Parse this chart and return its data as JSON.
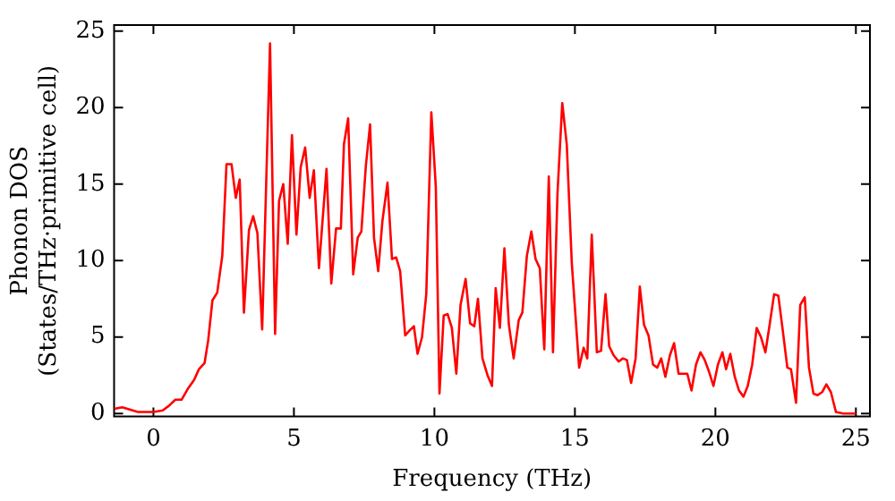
{
  "chart_data": {
    "type": "line",
    "xlabel": "Frequency (THz)",
    "ylabel": "Phonon DOS\n(States/THz·primitive cell)",
    "x": [
      -1.4,
      -1.11,
      -0.55,
      0.0,
      0.33,
      0.55,
      0.78,
      1.0,
      1.22,
      1.45,
      1.62,
      1.82,
      1.95,
      2.1,
      2.27,
      2.45,
      2.6,
      2.78,
      2.93,
      3.07,
      3.22,
      3.4,
      3.55,
      3.7,
      3.87,
      4.15,
      4.33,
      4.47,
      4.62,
      4.78,
      4.93,
      5.09,
      5.24,
      5.4,
      5.56,
      5.71,
      5.89,
      6.16,
      6.33,
      6.5,
      6.67,
      6.78,
      6.93,
      7.11,
      7.27,
      7.4,
      7.56,
      7.71,
      7.85,
      8.0,
      8.15,
      8.33,
      8.49,
      8.64,
      8.78,
      8.96,
      9.1,
      9.27,
      9.4,
      9.56,
      9.71,
      9.89,
      10.05,
      10.18,
      10.33,
      10.47,
      10.62,
      10.78,
      10.93,
      11.11,
      11.27,
      11.42,
      11.55,
      11.71,
      11.89,
      12.05,
      12.18,
      12.33,
      12.49,
      12.65,
      12.82,
      13.0,
      13.13,
      13.29,
      13.45,
      13.6,
      13.75,
      13.91,
      14.07,
      14.22,
      14.38,
      14.55,
      14.71,
      14.89,
      15.15,
      15.31,
      15.44,
      15.6,
      15.78,
      15.93,
      16.09,
      16.22,
      16.38,
      16.56,
      16.71,
      16.85,
      17.0,
      17.16,
      17.31,
      17.46,
      17.62,
      17.78,
      17.93,
      18.07,
      18.22,
      18.38,
      18.53,
      18.69,
      18.84,
      19.0,
      19.15,
      19.31,
      19.47,
      19.62,
      19.78,
      19.93,
      20.09,
      20.25,
      20.38,
      20.53,
      20.69,
      20.84,
      21.0,
      21.15,
      21.31,
      21.47,
      21.62,
      21.78,
      21.93,
      22.09,
      22.24,
      22.4,
      22.56,
      22.69,
      22.87,
      23.02,
      23.18,
      23.33,
      23.49,
      23.64,
      23.8,
      23.95,
      24.11,
      24.29,
      24.55,
      25.0
    ],
    "values": [
      0.3,
      0.4,
      0.1,
      0.1,
      0.2,
      0.5,
      0.9,
      0.9,
      1.6,
      2.2,
      2.9,
      3.3,
      4.8,
      7.4,
      7.9,
      10.3,
      16.3,
      16.3,
      14.1,
      15.3,
      6.6,
      12.0,
      12.9,
      11.8,
      5.5,
      24.2,
      5.2,
      13.9,
      15.0,
      11.1,
      18.2,
      11.7,
      16.1,
      17.4,
      14.1,
      15.9,
      9.5,
      16.0,
      8.5,
      12.1,
      12.1,
      17.6,
      19.3,
      9.1,
      11.5,
      11.9,
      16.2,
      18.9,
      11.5,
      9.3,
      12.6,
      15.1,
      10.1,
      10.2,
      9.3,
      5.1,
      5.4,
      5.7,
      3.9,
      5.0,
      7.8,
      19.7,
      14.8,
      1.3,
      6.4,
      6.5,
      5.6,
      2.6,
      7.1,
      8.8,
      5.9,
      5.7,
      7.5,
      3.6,
      2.5,
      1.8,
      8.2,
      5.6,
      10.8,
      5.8,
      3.6,
      6.1,
      6.6,
      10.3,
      11.9,
      10.1,
      9.5,
      4.2,
      15.5,
      4.0,
      14.4,
      20.3,
      17.6,
      9.8,
      3.0,
      4.3,
      3.6,
      11.7,
      4.0,
      4.1,
      7.8,
      4.4,
      3.8,
      3.4,
      3.6,
      3.5,
      2.0,
      3.6,
      8.3,
      5.8,
      5.1,
      3.2,
      3.0,
      3.6,
      2.4,
      3.8,
      4.6,
      2.6,
      2.6,
      2.6,
      1.5,
      3.2,
      4.0,
      3.5,
      2.7,
      1.8,
      3.2,
      4.0,
      2.9,
      3.9,
      2.4,
      1.5,
      1.1,
      1.8,
      3.2,
      5.6,
      5.0,
      4.0,
      5.8,
      7.8,
      7.7,
      5.4,
      3.0,
      2.9,
      0.7,
      7.1,
      7.6,
      3.0,
      1.3,
      1.2,
      1.4,
      1.9,
      1.4,
      0.1,
      0.0,
      0.0
    ],
    "color": "#ff0000",
    "xlim": [
      -1.4,
      25.5
    ],
    "ylim": [
      -0.2,
      25.4
    ],
    "xticks": [
      0,
      5,
      10,
      15,
      20,
      25
    ],
    "yticks": [
      0,
      5,
      10,
      15,
      20,
      25
    ],
    "grid": false,
    "legend": false,
    "marker": "none",
    "line_style": "solid"
  }
}
